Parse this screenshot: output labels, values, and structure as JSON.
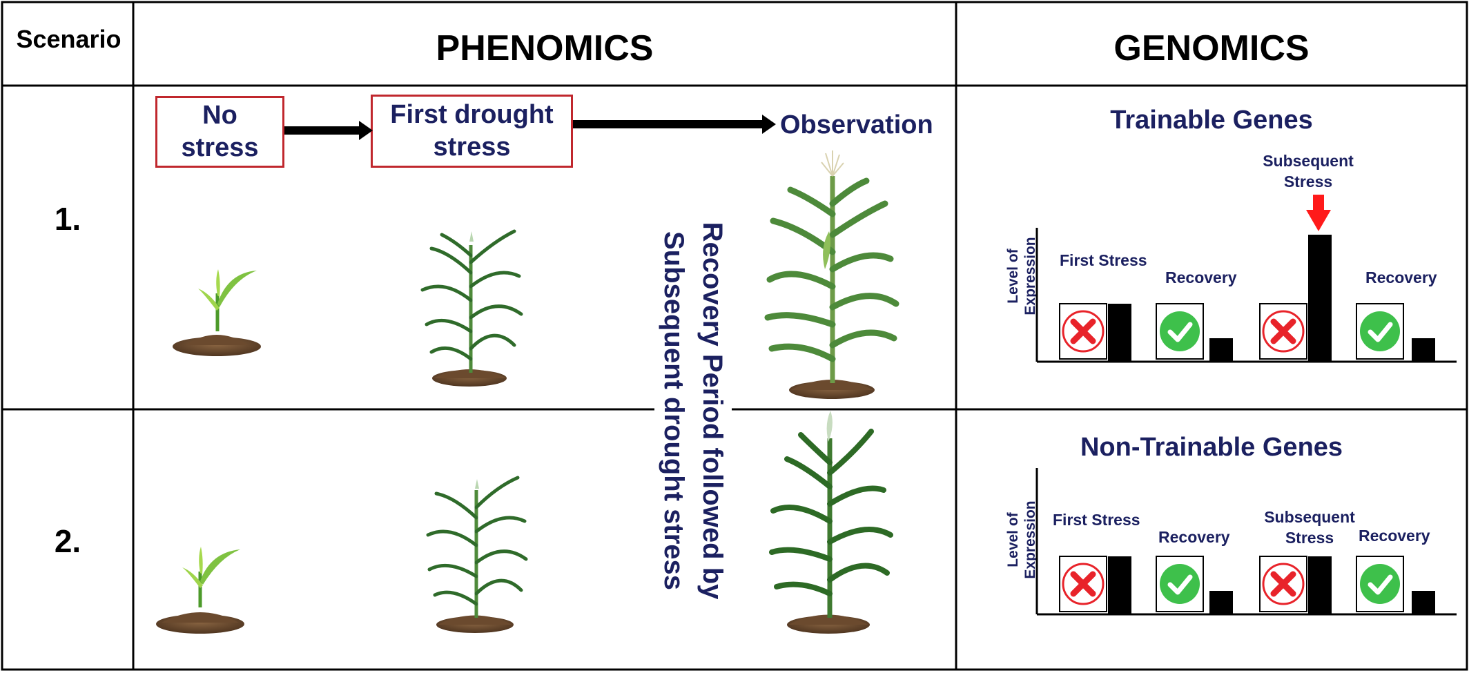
{
  "headers": {
    "scenario": "Scenario",
    "phenomics": "PHENOMICS",
    "genomics": "GENOMICS"
  },
  "rows": [
    {
      "label": "1."
    },
    {
      "label": "2."
    }
  ],
  "phenomics": {
    "stages": [
      "No stress",
      "First drought stress",
      "Observation"
    ],
    "stage_lines": {
      "no_stress": [
        "No",
        "stress"
      ],
      "first_drought": [
        "First drought",
        "stress"
      ]
    },
    "recovery_label": [
      "Recovery Period followed by",
      "Subsequent drought stress"
    ]
  },
  "genomics": {
    "trainable": {
      "title": "Trainable Genes",
      "ylabel": [
        "Level of",
        "Expression"
      ],
      "labels": {
        "first_stress": "First Stress",
        "recovery_1": "Recovery",
        "subsequent_stress": [
          "Subsequent",
          "Stress"
        ],
        "recovery_2": "Recovery"
      }
    },
    "non_trainable": {
      "title": "Non-Trainable Genes",
      "ylabel": [
        "Level of",
        "Expression"
      ],
      "labels": {
        "first_stress": "First Stress",
        "recovery_1": "Recovery",
        "subsequent_stress": [
          "Subsequent",
          "Stress"
        ],
        "recovery_2": "Recovery"
      }
    }
  },
  "chart_data": [
    {
      "type": "bar",
      "title": "Trainable Genes",
      "ylabel": "Level of Expression",
      "categories": [
        "First Stress",
        "Recovery",
        "Subsequent Stress",
        "Recovery"
      ],
      "values": [
        0.42,
        0.17,
        0.92,
        0.17
      ]
    },
    {
      "type": "bar",
      "title": "Non-Trainable Genes",
      "ylabel": "Level of Expression",
      "categories": [
        "First Stress",
        "Recovery",
        "Subsequent Stress",
        "Recovery"
      ],
      "values": [
        0.42,
        0.17,
        0.42,
        0.17
      ]
    }
  ],
  "colors": {
    "stage_border": "#c0272d",
    "navy_text": "#1b2060",
    "cross_red": "#e8232a",
    "check_green": "#3ec04b",
    "subsequent_arrow": "#ff1a1a",
    "plant_green": "#3e8a33",
    "soil": "#6b4a2e"
  },
  "icons": [
    "cross-icon",
    "check-icon",
    "arrow-right-icon",
    "arrow-down-icon",
    "seedling-icon",
    "corn-plant-icon"
  ]
}
